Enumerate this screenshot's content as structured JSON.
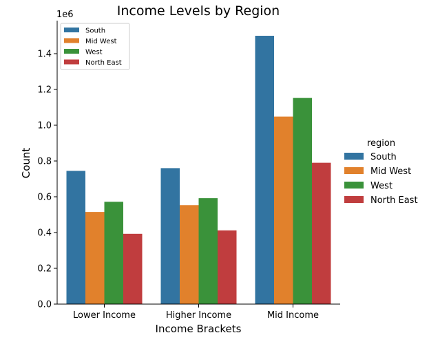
{
  "chart_data": {
    "type": "bar",
    "title": "Income Levels by Region",
    "xlabel": "Income Brackets",
    "ylabel": "Count",
    "y_offset_label": "1e6",
    "categories": [
      "Lower Income",
      "Higher Income",
      "Mid Income"
    ],
    "series": [
      {
        "name": "South",
        "color": "#3274a1",
        "values": [
          745000,
          760000,
          1500000
        ]
      },
      {
        "name": "Mid West",
        "color": "#e1812c",
        "values": [
          515000,
          553000,
          1048000
        ]
      },
      {
        "name": "West",
        "color": "#3a923a",
        "values": [
          572000,
          592000,
          1153000
        ]
      },
      {
        "name": "North East",
        "color": "#c03d3e",
        "values": [
          393000,
          412000,
          790000
        ]
      }
    ],
    "yticks": [
      "0.0",
      "0.2",
      "0.4",
      "0.6",
      "0.8",
      "1.0",
      "1.2",
      "1.4"
    ],
    "ylim": [
      0,
      1575000
    ],
    "legend_inner_placement": "upper-left",
    "legend_outer": {
      "title": "region",
      "placement": "right"
    },
    "grid": false
  }
}
